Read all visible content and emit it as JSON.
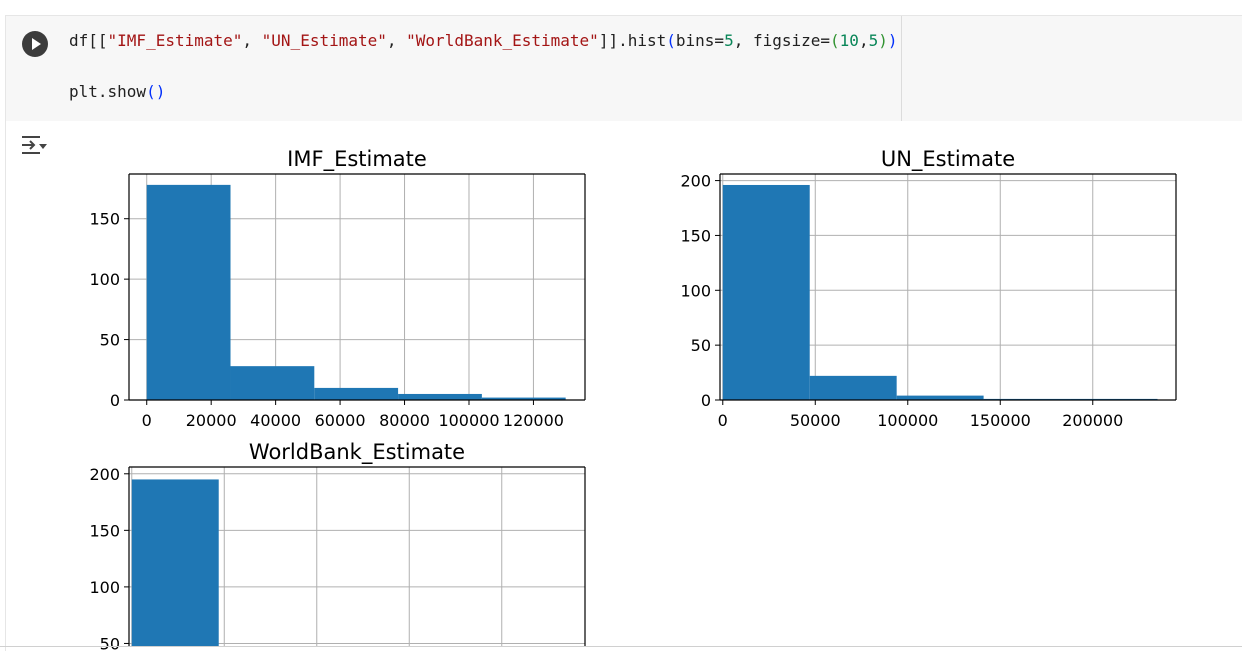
{
  "code": {
    "line1": {
      "t1": "df[[",
      "s1": "\"IMF_Estimate\"",
      "c1": ", ",
      "s2": "\"UN_Estimate\"",
      "c2": ", ",
      "s3": "\"WorldBank_Estimate\"",
      "t2": "]].hist",
      "p1": "(",
      "t3": "bins=",
      "n1": "5",
      "t4": ", figsize=",
      "p2": "(",
      "n2": "10",
      "t5": ",",
      "n3": "5",
      "p3": ")",
      "p4": ")"
    },
    "line2": {
      "t1": "plt.show",
      "p1": "()"
    }
  },
  "icons": {
    "run": "play-circle-icon",
    "output_toggle": "output-toggle-icon"
  },
  "colors": {
    "bar": "#1f77b4",
    "grid": "#b0b0b0"
  },
  "chart_data": [
    {
      "type": "bar",
      "title": "IMF_Estimate",
      "bins": [
        [
          0,
          26000
        ],
        [
          26000,
          52000
        ],
        [
          52000,
          78000
        ],
        [
          78000,
          104000
        ],
        [
          104000,
          130000
        ]
      ],
      "values": [
        178,
        28,
        10,
        5,
        2
      ],
      "xlim": [
        -5500,
        136000
      ],
      "ylim": [
        0,
        187
      ],
      "xticks": [
        0,
        20000,
        40000,
        60000,
        80000,
        100000,
        120000
      ],
      "xtick_labels": [
        "0",
        "20000",
        "40000",
        "60000",
        "80000",
        "100000",
        "120000"
      ],
      "yticks": [
        0,
        50,
        100,
        150
      ],
      "ytick_labels": [
        "0",
        "50",
        "100",
        "150"
      ],
      "grid": true
    },
    {
      "type": "bar",
      "title": "UN_Estimate",
      "bins": [
        [
          0,
          47000
        ],
        [
          47000,
          94000
        ],
        [
          94000,
          141000
        ],
        [
          141000,
          188000
        ],
        [
          188000,
          235000
        ]
      ],
      "values": [
        196,
        22,
        4,
        1,
        1
      ],
      "xlim": [
        -1500,
        245000
      ],
      "ylim": [
        0,
        206
      ],
      "xticks": [
        0,
        50000,
        100000,
        150000,
        200000
      ],
      "xtick_labels": [
        "0",
        "50000",
        "100000",
        "150000",
        "200000"
      ],
      "yticks": [
        0,
        50,
        100,
        150,
        200
      ],
      "ytick_labels": [
        "0",
        "50",
        "100",
        "150",
        "200"
      ],
      "grid": true
    },
    {
      "type": "bar",
      "title": "WorldBank_Estimate",
      "bins": [
        [
          0,
          47000
        ]
      ],
      "values": [
        195
      ],
      "xlim": [
        -1500,
        245000
      ],
      "ylim": [
        0,
        206
      ],
      "xticks": [
        0,
        50000,
        100000,
        150000,
        200000
      ],
      "yticks": [
        50,
        100,
        150,
        200
      ],
      "ytick_labels": [
        "50",
        "100",
        "150",
        "200"
      ],
      "grid": true
    }
  ]
}
